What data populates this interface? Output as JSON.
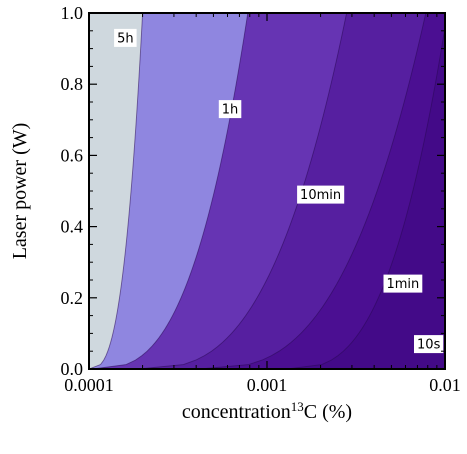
{
  "chart_data": {
    "type": "contour",
    "xlabel": "concentration",
    "xlabel_sup": "13",
    "xlabel_suffix": "C (%)",
    "ylabel": "Laser power (W)",
    "x_scale": "log",
    "xlim": [
      0.0001,
      0.01
    ],
    "ylim": [
      0.0,
      1.0
    ],
    "x_ticks": [
      {
        "value": 0.0001,
        "label": "0.0001"
      },
      {
        "value": 0.001,
        "label": "0.001"
      },
      {
        "value": 0.01,
        "label": "0.01"
      }
    ],
    "y_ticks": [
      {
        "value": 0.0,
        "label": "0.0"
      },
      {
        "value": 0.2,
        "label": "0.2"
      },
      {
        "value": 0.4,
        "label": "0.4"
      },
      {
        "value": 0.6,
        "label": "0.6"
      },
      {
        "value": 0.8,
        "label": "0.8"
      },
      {
        "value": 1.0,
        "label": "1.0"
      }
    ],
    "contours": [
      {
        "label": "5h",
        "c0": 0.0001,
        "c1": 0.0002,
        "label_at": [
          0.00016,
          0.93
        ]
      },
      {
        "label": "1h",
        "c0": 0.000105,
        "c1": 0.00078,
        "label_at": [
          0.00062,
          0.73
        ]
      },
      {
        "label": "10min",
        "c0": 0.00019,
        "c1": 0.0028,
        "label_at": [
          0.002,
          0.49
        ]
      },
      {
        "label": "1min",
        "c0": 0.00042,
        "c1": 0.0078,
        "label_at": [
          0.0058,
          0.24
        ]
      },
      {
        "label": "10s",
        "c0": 0.0013,
        "c1": 0.0103,
        "label_at": [
          0.0081,
          0.07
        ]
      }
    ],
    "region_colors": [
      "#cfd8de",
      "#8f86e0",
      "#6634b3",
      "#561fa0",
      "#4b0f92",
      "#430a88"
    ],
    "grid": false,
    "legend": "none"
  }
}
